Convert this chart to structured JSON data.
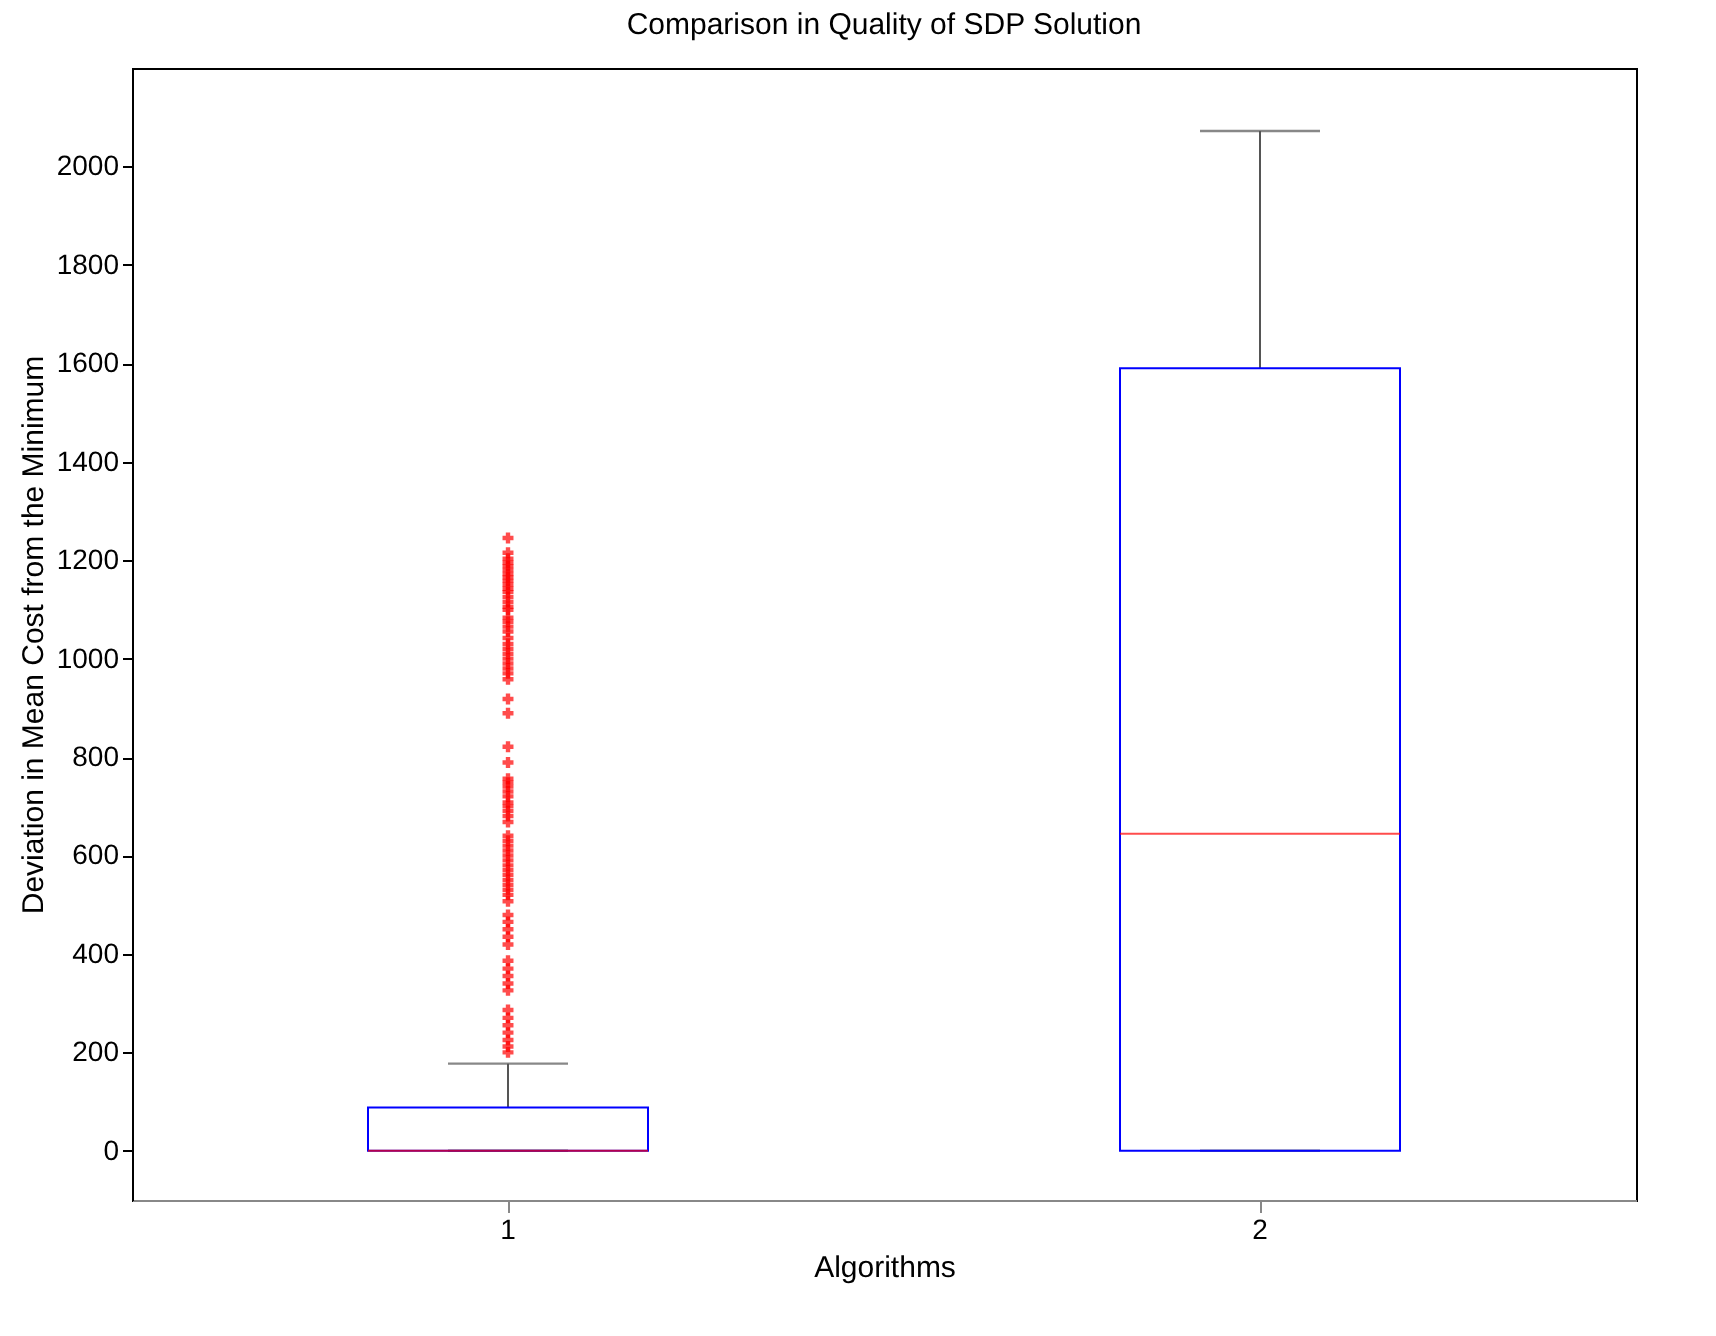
{
  "chart_data": {
    "type": "box",
    "title": "Comparison in Quality of SDP Solution",
    "xlabel": "Algorithms",
    "ylabel": "Deviation in Mean Cost from the Minimum",
    "categories": [
      "1",
      "2"
    ],
    "boxes": [
      {
        "low": 0,
        "q1": 0,
        "median": 0,
        "q3": 88,
        "high": 177,
        "outliers": [
          1245,
          1215,
          1203,
          1195,
          1188,
          1180,
          1172,
          1165,
          1158,
          1150,
          1142,
          1135,
          1125,
          1115,
          1105,
          1099,
          1083,
          1075,
          1065,
          1055,
          1042,
          1030,
          1020,
          1010,
          1000,
          990,
          980,
          970,
          958,
          918,
          889,
          821,
          789,
          756,
          748,
          740,
          730,
          720,
          708,
          700,
          690,
          680,
          668,
          640,
          630,
          620,
          610,
          600,
          590,
          580,
          570,
          560,
          550,
          540,
          530,
          520,
          507,
          479,
          465,
          450,
          435,
          419,
          386,
          370,
          355,
          340,
          326,
          286,
          270,
          255,
          240,
          225,
          212,
          200
        ]
      },
      {
        "low": 0,
        "q1": 0,
        "median": 644,
        "q3": 1590,
        "high": 2072
      }
    ],
    "ylim": [
      -100,
      2200
    ],
    "yticks": [
      0,
      200,
      400,
      600,
      800,
      1000,
      1200,
      1400,
      1600,
      1800,
      2000
    ],
    "grid": false
  }
}
